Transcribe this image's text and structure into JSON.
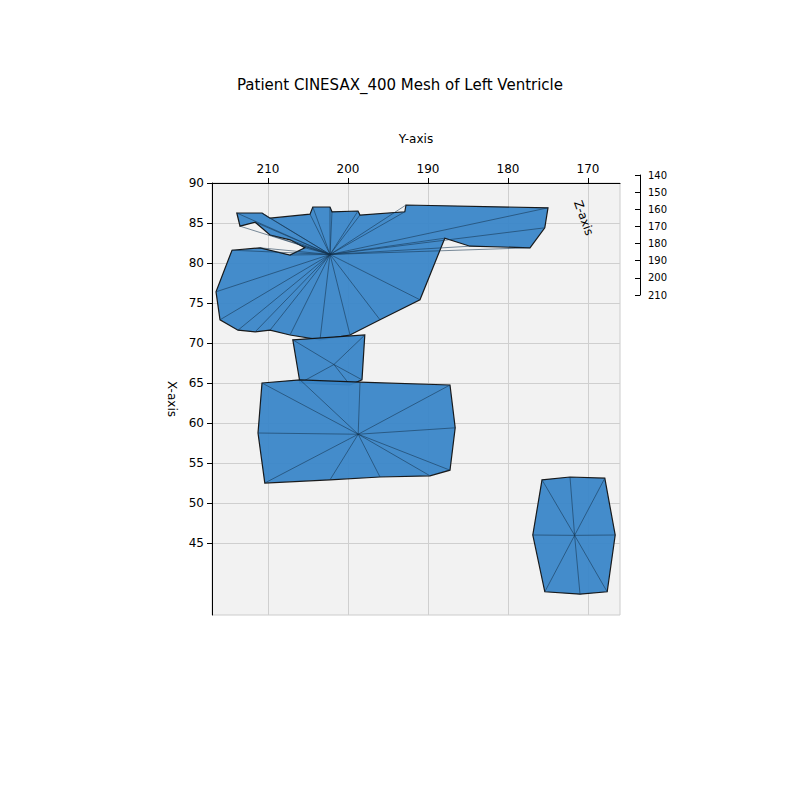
{
  "chart_data": {
    "type": "mesh",
    "title": "Patient CINESAX_400 Mesh of Left Ventricle",
    "x_label": "Y-axis",
    "y_label": "X-axis",
    "z_label": "Z-axis",
    "xlim": [
      166,
      217
    ],
    "xticks": [
      210,
      200,
      190,
      180,
      170
    ],
    "ylim": [
      36,
      90
    ],
    "yticks": [
      45,
      50,
      55,
      60,
      65,
      70,
      75,
      80,
      85,
      90
    ],
    "zlim": [
      140,
      210
    ],
    "zticks": [
      140,
      150,
      160,
      170,
      180,
      190,
      200,
      210
    ],
    "grid": true,
    "color": "#3a86c8",
    "polygons": [
      [
        [
          213.9,
          86.25
        ],
        [
          210.75,
          86.25
        ],
        [
          209.75,
          85.6
        ],
        [
          204.75,
          86.1
        ],
        [
          204.4,
          87.0
        ],
        [
          202.25,
          87.0
        ],
        [
          202.0,
          86.4
        ],
        [
          198.75,
          86.5
        ],
        [
          198.5,
          86.0
        ],
        [
          192.9,
          86.4
        ],
        [
          192.75,
          87.25
        ],
        [
          175.0,
          86.9
        ],
        [
          175.4,
          84.4
        ],
        [
          177.25,
          81.9
        ],
        [
          184.75,
          82.1
        ],
        [
          187.9,
          83.1
        ],
        [
          191.0,
          75.4
        ],
        [
          196.0,
          72.9
        ],
        [
          199.75,
          71.0
        ],
        [
          203.5,
          70.4
        ],
        [
          207.25,
          71.0
        ],
        [
          209.75,
          71.6
        ],
        [
          211.6,
          71.4
        ],
        [
          213.75,
          71.6
        ],
        [
          216.0,
          72.9
        ],
        [
          216.5,
          76.4
        ],
        [
          214.5,
          81.6
        ],
        [
          211.0,
          81.9
        ],
        [
          207.25,
          81.0
        ],
        [
          205.4,
          81.9
        ],
        [
          207.25,
          82.9
        ],
        [
          209.75,
          83.5
        ],
        [
          211.6,
          85.1
        ],
        [
          213.5,
          84.6
        ]
      ],
      [
        [
          206.9,
          70.4
        ],
        [
          197.9,
          71.0
        ],
        [
          198.25,
          65.4
        ],
        [
          199.75,
          64.75
        ],
        [
          206.0,
          65.0
        ]
      ],
      [
        [
          210.75,
          65.0
        ],
        [
          206.0,
          65.4
        ],
        [
          198.5,
          65.1
        ],
        [
          187.25,
          64.75
        ],
        [
          186.6,
          59.4
        ],
        [
          187.25,
          54.1
        ],
        [
          189.75,
          53.4
        ],
        [
          196.0,
          53.25
        ],
        [
          202.25,
          52.9
        ],
        [
          210.4,
          52.5
        ],
        [
          211.25,
          58.75
        ]
      ],
      [
        [
          175.75,
          52.9
        ],
        [
          172.25,
          53.25
        ],
        [
          167.9,
          53.1
        ],
        [
          166.6,
          46.0
        ],
        [
          167.6,
          38.9
        ],
        [
          171.0,
          38.6
        ],
        [
          175.4,
          38.9
        ],
        [
          176.9,
          46.0
        ]
      ]
    ]
  }
}
